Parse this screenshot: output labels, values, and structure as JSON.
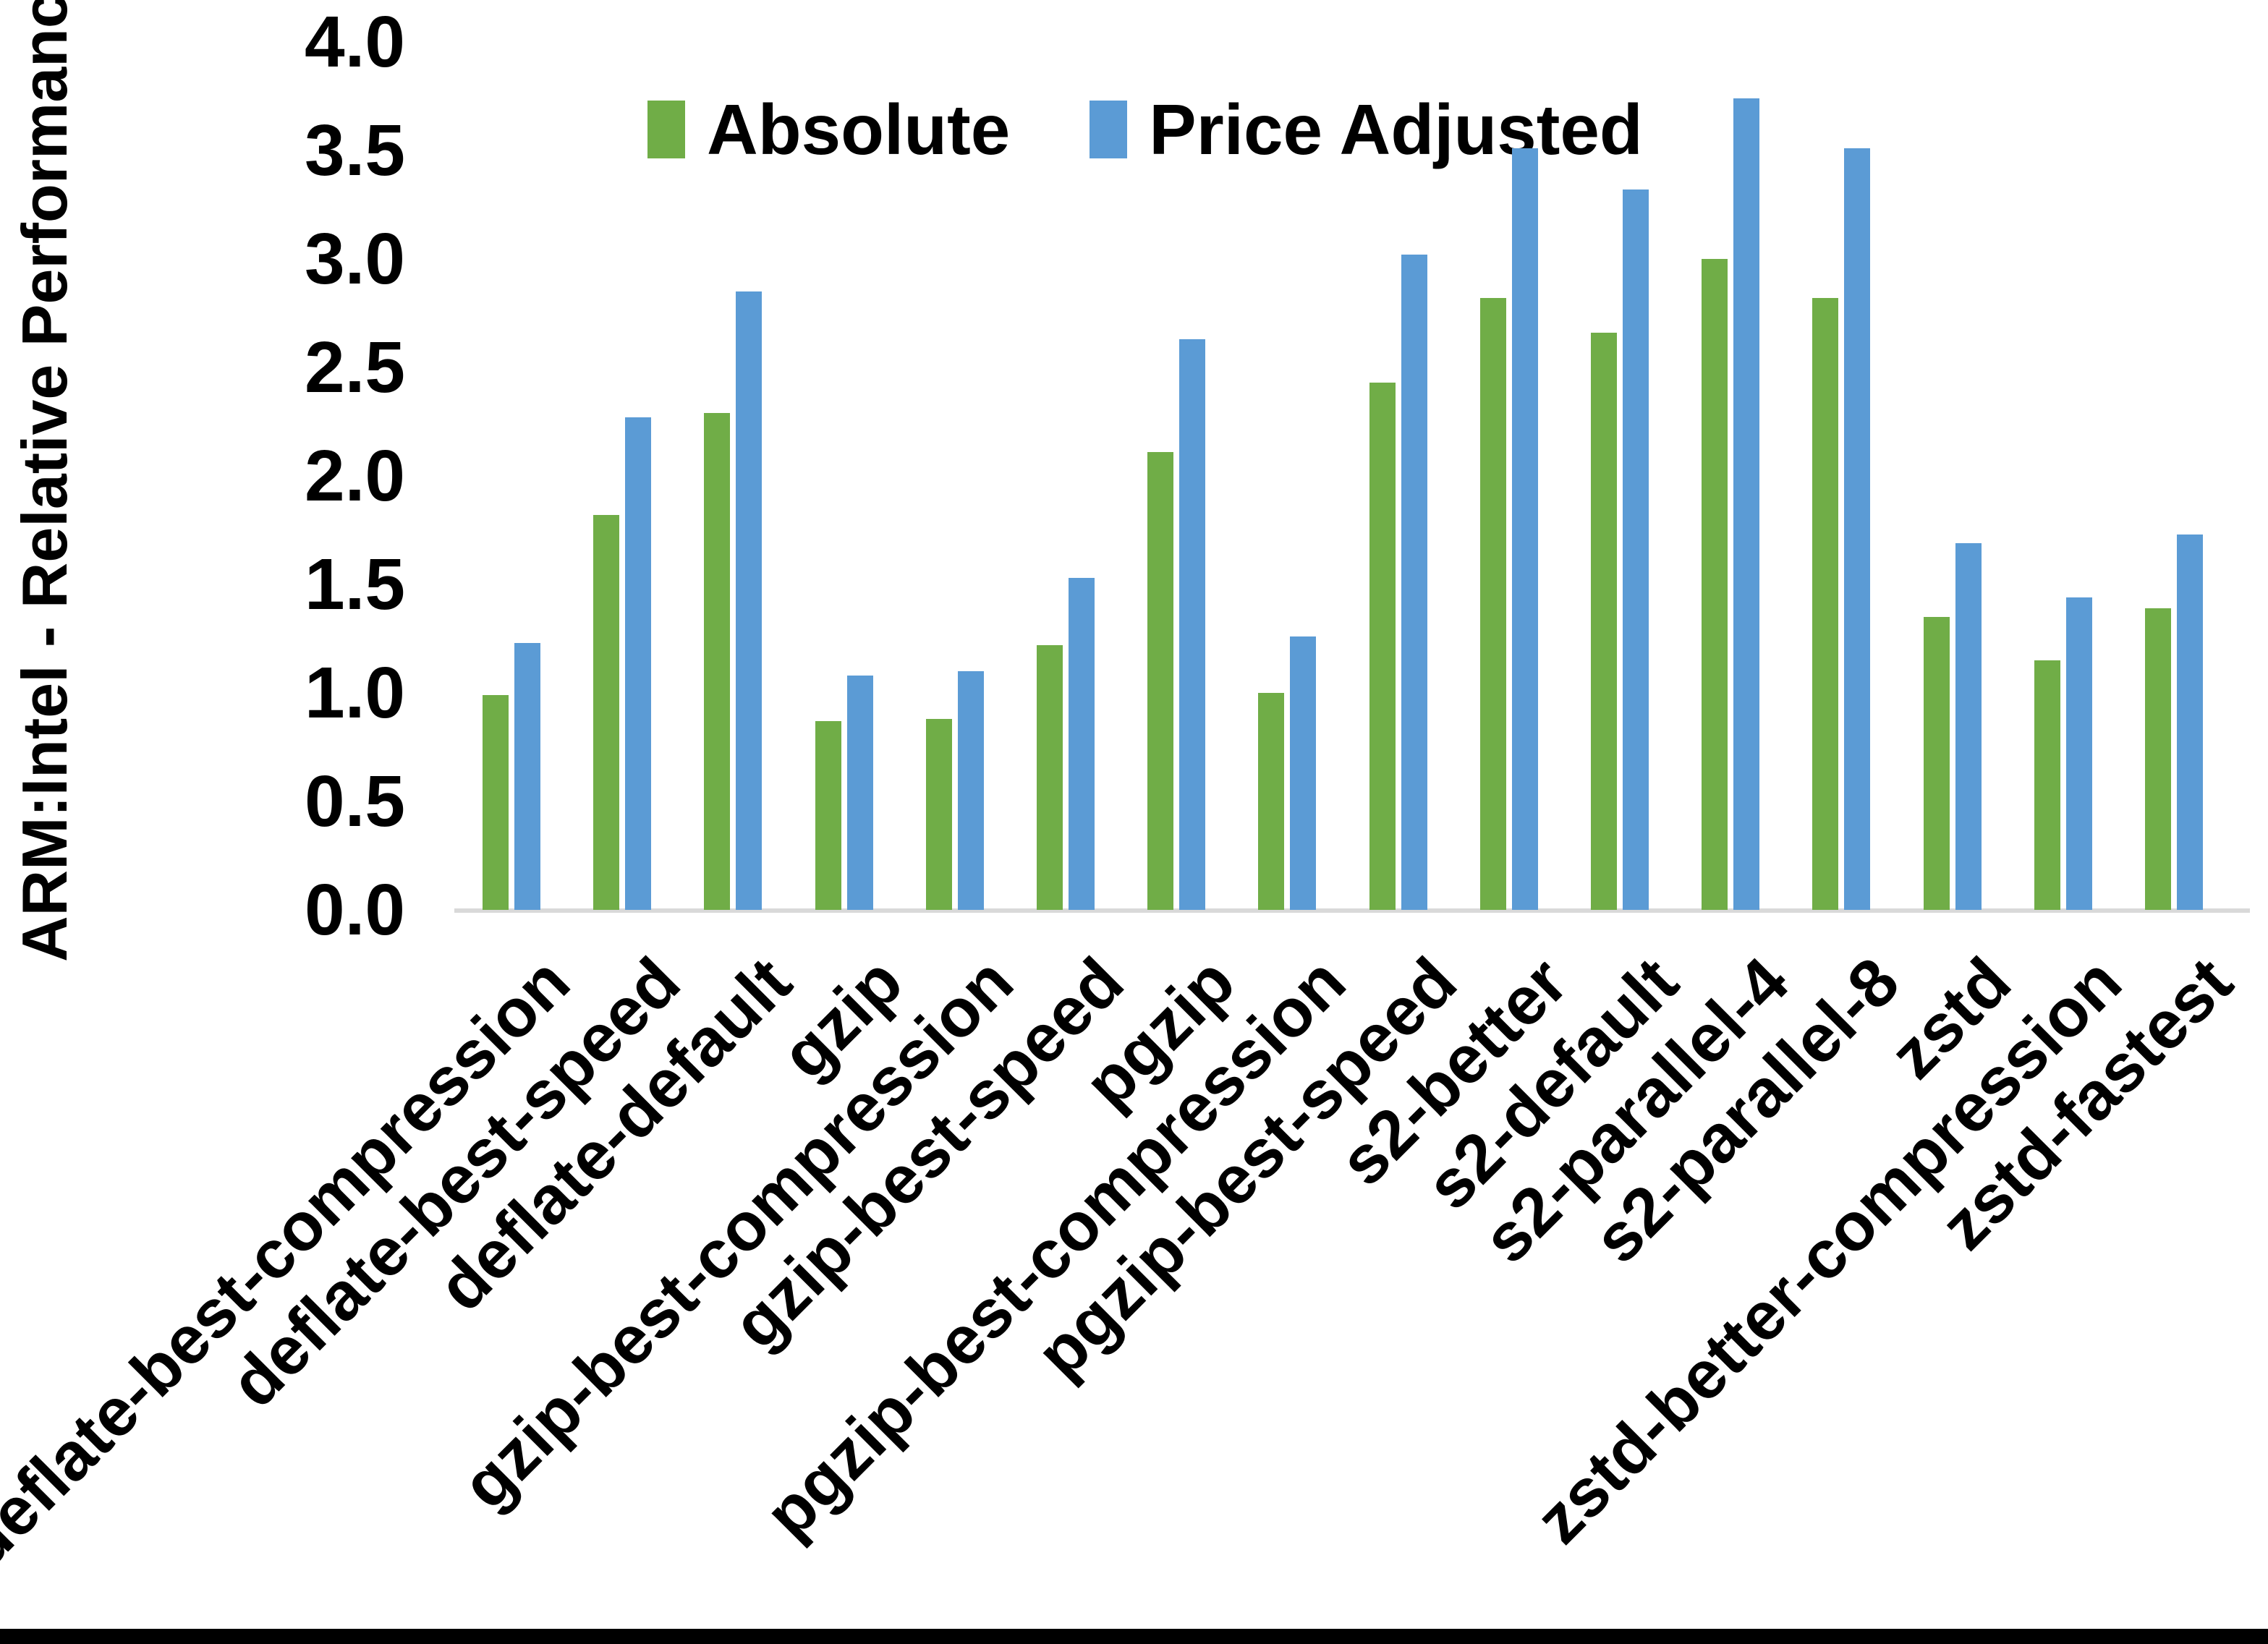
{
  "chart_data": {
    "type": "bar",
    "title": "",
    "xlabel": "",
    "ylabel": "ARM:Intel - Relative Performance",
    "ylim": [
      0.0,
      4.0
    ],
    "ytick_step": 0.5,
    "yticks": [
      "0.0",
      "0.5",
      "1.0",
      "1.5",
      "2.0",
      "2.5",
      "3.0",
      "3.5",
      "4.0"
    ],
    "grid": false,
    "legend_position": "top-center",
    "axis_line_color": "#D9D9D9",
    "text_color": "#000000",
    "background": "#FFFFFF",
    "categories": [
      "deflate-best-compression",
      "deflate-best-speed",
      "deflate-default",
      "gzip",
      "gzip-best-compression",
      "gzip-best-speed",
      "pgzip",
      "pgzip-best-compression",
      "pgzip-best-speed",
      "s2-better",
      "s2-default",
      "s2-parallel-4",
      "s2-parallel-8",
      "zstd",
      "zstd-better-compression",
      "zstd-fastest"
    ],
    "series": [
      {
        "name": "Absolute",
        "color": "#70AD47",
        "values": [
          0.99,
          1.82,
          2.29,
          0.87,
          0.88,
          1.22,
          2.11,
          1.0,
          2.43,
          2.82,
          2.66,
          3.0,
          2.82,
          1.35,
          1.15,
          1.39
        ]
      },
      {
        "name": "Price Adjusted",
        "color": "#5B9BD5",
        "values": [
          1.23,
          2.27,
          2.85,
          1.08,
          1.1,
          1.53,
          2.63,
          1.26,
          3.02,
          3.51,
          3.32,
          3.74,
          3.51,
          1.69,
          1.44,
          1.73
        ]
      }
    ]
  }
}
